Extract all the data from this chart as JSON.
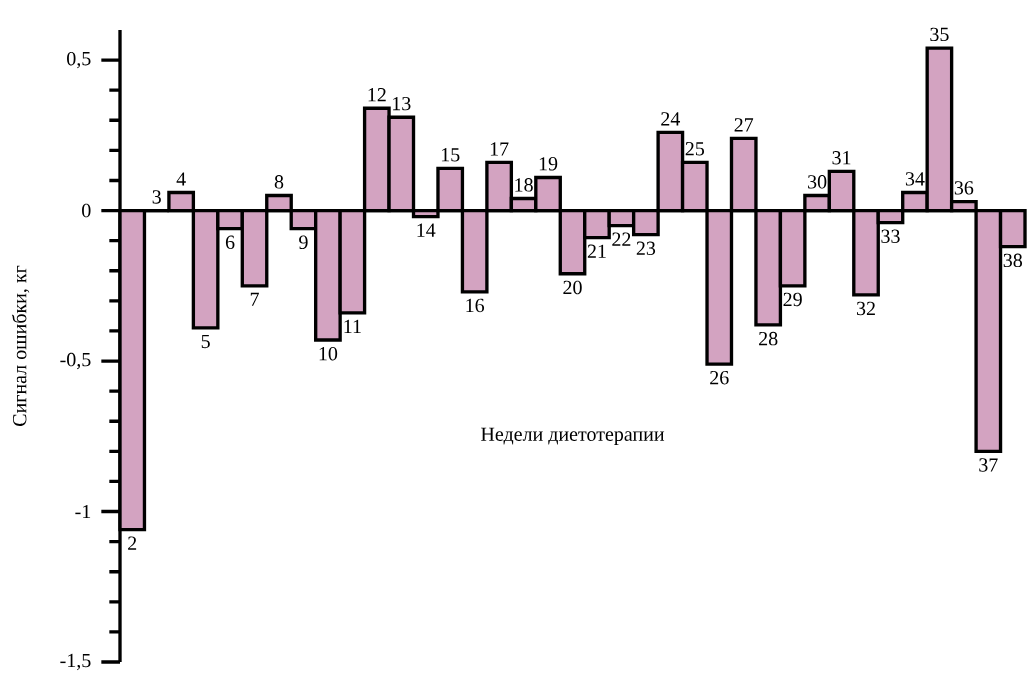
{
  "chart_data": {
    "type": "bar",
    "xlabel": "Недели диетотерапии",
    "ylabel": "Сигнал ошибки, кг",
    "categories": [
      "2",
      "3",
      "4",
      "5",
      "6",
      "7",
      "8",
      "9",
      "10",
      "11",
      "12",
      "13",
      "14",
      "15",
      "16",
      "17",
      "18",
      "19",
      "20",
      "21",
      "22",
      "23",
      "24",
      "25",
      "26",
      "27",
      "28",
      "29",
      "30",
      "31",
      "32",
      "33",
      "34",
      "35",
      "36",
      "37",
      "38"
    ],
    "values": [
      -1.06,
      0,
      0.06,
      -0.39,
      -0.06,
      -0.25,
      0.05,
      -0.06,
      -0.43,
      -0.34,
      0.34,
      0.31,
      -0.02,
      0.14,
      -0.27,
      0.16,
      0.04,
      0.11,
      -0.21,
      -0.09,
      -0.05,
      -0.08,
      0.26,
      0.16,
      -0.51,
      0.24,
      -0.38,
      -0.25,
      0.05,
      0.13,
      -0.28,
      -0.04,
      0.06,
      0.54,
      0.03,
      -0.8,
      -0.12
    ],
    "color": "#d3a3c1",
    "ylim": [
      -1.5,
      0.6
    ],
    "yticks": [
      {
        "value": -1.5,
        "label": "-1,5"
      },
      -1,
      {
        "value": -0.5,
        "label": "-0,5"
      },
      0,
      {
        "value": 0.5,
        "label": "0,5"
      }
    ],
    "grid": false
  }
}
